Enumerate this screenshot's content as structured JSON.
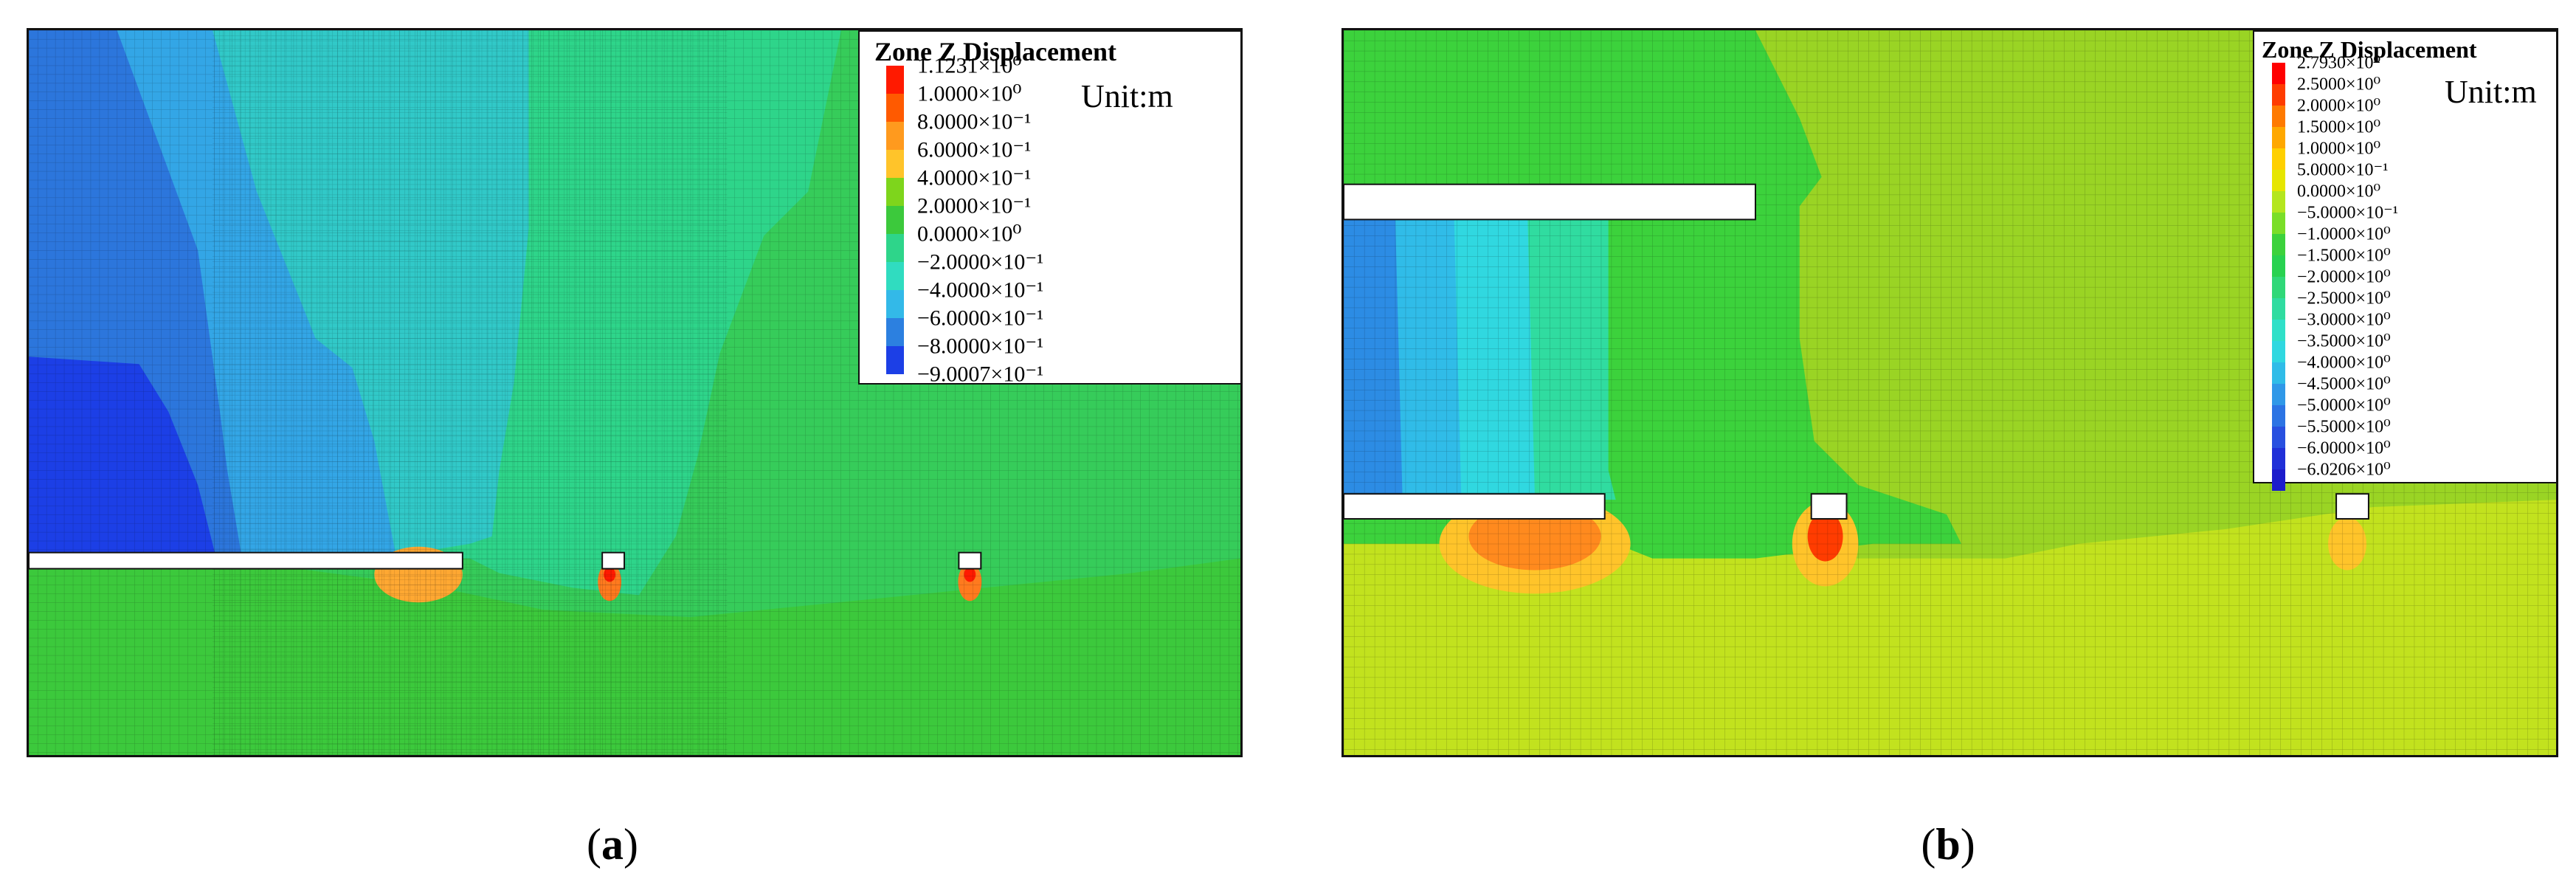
{
  "figure": {
    "panels": [
      {
        "id": "a",
        "caption_open": "(",
        "caption_letter": "a",
        "caption_close": ")",
        "legend": {
          "title": "Zone Z Displacement",
          "unit": "Unit:m",
          "colors": [
            "#ff1a00",
            "#ff5a00",
            "#ff9a1e",
            "#ffc42a",
            "#7ed51c",
            "#3cc93c",
            "#2ed58a",
            "#30dcc0",
            "#33b9e8",
            "#2c80e0",
            "#1c3fe6"
          ],
          "labels": [
            "1.1231×10⁰",
            "1.0000×10⁰",
            "8.0000×10⁻¹",
            "6.0000×10⁻¹",
            "4.0000×10⁻¹",
            "2.0000×10⁻¹",
            "0.0000×10⁰",
            "−2.0000×10⁻¹",
            "−4.0000×10⁻¹",
            "−6.0000×10⁻¹",
            "−8.0000×10⁻¹",
            "−9.0007×10⁻¹"
          ]
        }
      },
      {
        "id": "b",
        "caption_open": "(",
        "caption_letter": "b",
        "caption_close": ")",
        "legend": {
          "title": "Zone Z Displacement",
          "unit": "Unit:m",
          "colors": [
            "#ff0000",
            "#ff3c00",
            "#ff7a00",
            "#ffa800",
            "#ffd000",
            "#e6e600",
            "#b4e61e",
            "#7ade28",
            "#3cd23c",
            "#28d250",
            "#30d878",
            "#30dca0",
            "#30e0c8",
            "#30d8e0",
            "#30bce8",
            "#3098e8",
            "#2c74e4",
            "#2850e0",
            "#2030d8",
            "#1c1ccc"
          ],
          "labels": [
            "2.7930×10⁰",
            "2.5000×10⁰",
            "2.0000×10⁰",
            "1.5000×10⁰",
            "1.0000×10⁰",
            "5.0000×10⁻¹",
            "0.0000×10⁰",
            "−5.0000×10⁻¹",
            "−1.0000×10⁰",
            "−1.5000×10⁰",
            "−2.0000×10⁰",
            "−2.5000×10⁰",
            "−3.0000×10⁰",
            "−3.5000×10⁰",
            "−4.0000×10⁰",
            "−4.5000×10⁰",
            "−5.0000×10⁰",
            "−5.5000×10⁰",
            "−6.0000×10⁰",
            "−6.0206×10⁰"
          ]
        }
      }
    ]
  }
}
